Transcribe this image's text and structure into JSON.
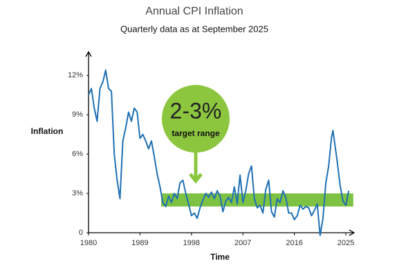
{
  "chart_data": {
    "type": "line",
    "title": "Annual CPI Inflation",
    "subtitle": "Quarterly data as at September 2025",
    "x_label": "Time",
    "y_label": "Inflation",
    "annotation": {
      "title": "2-3%",
      "text": "target range",
      "color": "#8cc63f"
    },
    "band": {
      "from": 2,
      "to": 3,
      "xlim": [
        1992.7,
        2026.3
      ],
      "color": "#7dc242"
    },
    "x": [
      1980,
      1980.5,
      1981,
      1981.5,
      1982,
      1982.5,
      1983,
      1983.5,
      1984,
      1984.5,
      1985,
      1985.5,
      1986,
      1986.5,
      1987,
      1987.5,
      1988,
      1988.5,
      1989,
      1989.5,
      1990,
      1990.5,
      1991,
      1991.5,
      1992,
      1992.5,
      1993,
      1993.5,
      1994,
      1994.5,
      1995,
      1995.5,
      1996,
      1996.5,
      1997,
      1997.5,
      1998,
      1998.5,
      1999,
      1999.5,
      2000,
      2000.5,
      2001,
      2001.5,
      2002,
      2002.5,
      2003,
      2003.5,
      2004,
      2004.5,
      2005,
      2005.5,
      2006,
      2006.5,
      2007,
      2007.5,
      2008,
      2008.5,
      2009,
      2009.5,
      2010,
      2010.5,
      2011,
      2011.5,
      2012,
      2012.5,
      2013,
      2013.5,
      2014,
      2014.5,
      2015,
      2015.5,
      2016,
      2016.5,
      2017,
      2017.5,
      2018,
      2018.5,
      2019,
      2019.5,
      2020,
      2020.5,
      2021,
      2021.5,
      2022,
      2022.5,
      2022.75,
      2023,
      2023.5,
      2024,
      2024.5,
      2025,
      2025.5
    ],
    "series": [
      {
        "name": "Annual CPI inflation",
        "color": "#1f6fb4",
        "values": [
          10.5,
          11,
          9.5,
          8.5,
          11,
          11.5,
          12.4,
          11,
          10.8,
          6,
          4,
          2.6,
          7,
          8,
          9.2,
          8.5,
          9.5,
          9.2,
          7.2,
          7.5,
          7,
          6.4,
          7,
          5.8,
          4.5,
          3.5,
          2.3,
          2,
          2.8,
          2.3,
          3,
          2.6,
          3.8,
          4,
          3,
          2.2,
          1.3,
          1.5,
          1.1,
          1.9,
          2.5,
          3,
          2.7,
          3.1,
          2.6,
          3.2,
          2.8,
          1.6,
          2.4,
          2.7,
          2.3,
          3.5,
          2.2,
          4.4,
          2.3,
          3.2,
          4.5,
          5.1,
          2.6,
          1.9,
          2.1,
          1.5,
          3.3,
          4,
          1.6,
          1.2,
          2.6,
          2.3,
          3.2,
          2.7,
          1.5,
          1.5,
          1,
          1.3,
          2.1,
          1.8,
          2,
          1.9,
          1.3,
          1.7,
          2.2,
          -0.2,
          1.1,
          3.8,
          5.1,
          7.3,
          7.8,
          7,
          5.4,
          3.6,
          2.4,
          2.1,
          3.2
        ]
      }
    ],
    "xlim": [
      1980,
      2026.45
    ],
    "ylim": [
      0,
      13.8
    ],
    "xticks": [
      1980,
      1989,
      1998,
      2007,
      2016,
      2025
    ],
    "yticks": [
      0,
      {
        "value": 3,
        "label": "3%"
      },
      {
        "value": 6,
        "label": "6%"
      },
      {
        "value": 9,
        "label": "9%"
      },
      {
        "value": 12,
        "label": "12%"
      }
    ]
  }
}
